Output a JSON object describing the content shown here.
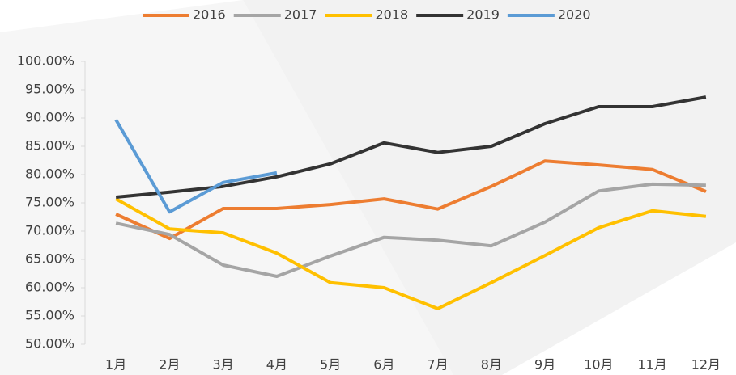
{
  "chart_data": {
    "type": "line",
    "categories": [
      "1月",
      "2月",
      "3月",
      "4月",
      "5月",
      "6月",
      "7月",
      "8月",
      "9月",
      "10月",
      "11月",
      "12月"
    ],
    "series": [
      {
        "name": "2016",
        "color": "#ed7d31",
        "values": [
          73.0,
          68.7,
          74.0,
          74.0,
          74.7,
          75.7,
          73.9,
          77.9,
          82.4,
          81.7,
          80.9,
          77.0
        ]
      },
      {
        "name": "2017",
        "color": "#a5a5a5",
        "values": [
          71.4,
          69.4,
          64.0,
          62.0,
          65.6,
          68.9,
          68.4,
          67.4,
          71.6,
          77.1,
          78.3,
          78.1
        ]
      },
      {
        "name": "2018",
        "color": "#ffc000",
        "values": [
          75.7,
          70.4,
          69.7,
          66.1,
          60.9,
          60.0,
          56.3,
          60.9,
          65.7,
          70.6,
          73.6,
          72.6
        ]
      },
      {
        "name": "2019",
        "color": "#333333",
        "values": [
          76.0,
          76.9,
          77.9,
          79.6,
          81.9,
          85.6,
          83.9,
          85.0,
          89.0,
          92.0,
          92.0,
          93.7
        ]
      },
      {
        "name": "2020",
        "color": "#5b9bd5",
        "values": [
          89.7,
          73.4,
          78.6,
          80.3,
          null,
          null,
          null,
          null,
          null,
          null,
          null,
          null
        ]
      }
    ],
    "ylim": [
      50,
      100
    ],
    "yticks": [
      {
        "value": 50,
        "label": "50.00%"
      },
      {
        "value": 55,
        "label": "55.00%"
      },
      {
        "value": 60,
        "label": "60.00%"
      },
      {
        "value": 65,
        "label": "65.00%"
      },
      {
        "value": 70,
        "label": "70.00%"
      },
      {
        "value": 75,
        "label": "75.00%"
      },
      {
        "value": 80,
        "label": "80.00%"
      },
      {
        "value": 85,
        "label": "85.00%"
      },
      {
        "value": 90,
        "label": "90.00%"
      },
      {
        "value": 95,
        "label": "95.00%"
      },
      {
        "value": 100,
        "label": "100.00%"
      }
    ],
    "legend": "top"
  }
}
